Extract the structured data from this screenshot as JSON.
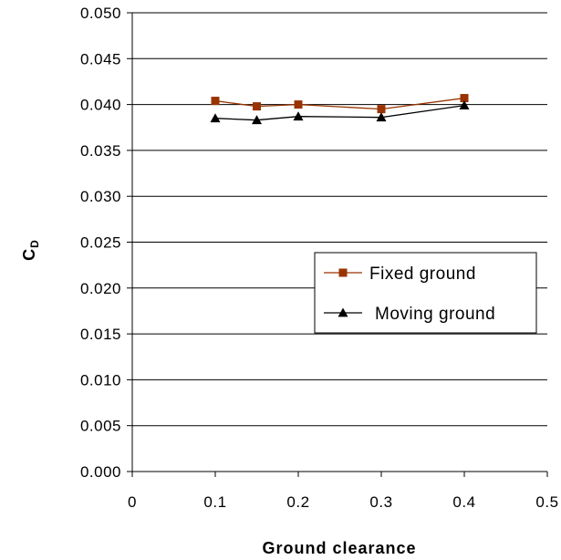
{
  "chart_data": {
    "type": "line",
    "xlabel": "Ground clearance",
    "ylabel": "C",
    "ylabel_subscript": "D",
    "xlim": [
      0,
      0.5
    ],
    "ylim": [
      0,
      0.05
    ],
    "x_ticks": [
      "0",
      "0.1",
      "0.2",
      "0.3",
      "0.4",
      "0.5"
    ],
    "y_ticks": [
      "0.000",
      "0.005",
      "0.010",
      "0.015",
      "0.020",
      "0.025",
      "0.030",
      "0.035",
      "0.040",
      "0.045",
      "0.050"
    ],
    "grid": "horizontal",
    "legend_position": "right",
    "series": [
      {
        "name": "Fixed ground",
        "marker": "square",
        "color": "#993300",
        "x": [
          0.1,
          0.15,
          0.2,
          0.3,
          0.4
        ],
        "y": [
          0.0404,
          0.0398,
          0.04,
          0.0395,
          0.0407
        ]
      },
      {
        "name": "Moving ground",
        "marker": "triangle",
        "color": "#000000",
        "x": [
          0.1,
          0.15,
          0.2,
          0.3,
          0.4
        ],
        "y": [
          0.0385,
          0.0383,
          0.0387,
          0.0386,
          0.0399
        ]
      }
    ]
  }
}
